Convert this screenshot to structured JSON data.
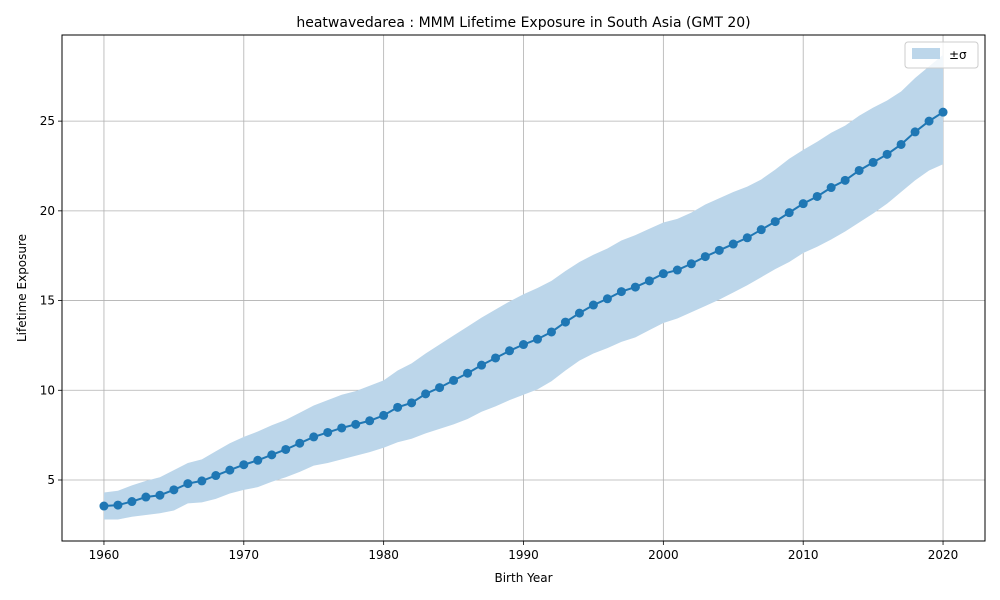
{
  "chart_data": {
    "type": "line",
    "title": "heatwavedarea : MMM Lifetime Exposure in South Asia (GMT 20)",
    "xlabel": "Birth Year",
    "ylabel": "Lifetime Exposure",
    "xlim": [
      1957,
      2023
    ],
    "ylim": [
      1.6,
      29.8
    ],
    "xticks": [
      1960,
      1970,
      1980,
      1990,
      2000,
      2010,
      2020
    ],
    "yticks": [
      5,
      10,
      15,
      20,
      25
    ],
    "grid": true,
    "legend_position": "top-right",
    "colors": {
      "line": "#1f77b4",
      "band": "#bcd6ea",
      "grid": "#b0b0b0"
    },
    "x": [
      1960,
      1961,
      1962,
      1963,
      1964,
      1965,
      1966,
      1967,
      1968,
      1969,
      1970,
      1971,
      1972,
      1973,
      1974,
      1975,
      1976,
      1977,
      1978,
      1979,
      1980,
      1981,
      1982,
      1983,
      1984,
      1985,
      1986,
      1987,
      1988,
      1989,
      1990,
      1991,
      1992,
      1993,
      1994,
      1995,
      1996,
      1997,
      1998,
      1999,
      2000,
      2001,
      2002,
      2003,
      2004,
      2005,
      2006,
      2007,
      2008,
      2009,
      2010,
      2011,
      2012,
      2013,
      2014,
      2015,
      2016,
      2017,
      2018,
      2019,
      2020
    ],
    "series": [
      {
        "values": [
          3.55,
          3.6,
          3.8,
          4.05,
          4.15,
          4.45,
          4.8,
          4.95,
          5.25,
          5.55,
          5.85,
          6.1,
          6.4,
          6.7,
          7.05,
          7.4,
          7.65,
          7.9,
          8.1,
          8.3,
          8.6,
          9.05,
          9.3,
          9.8,
          10.15,
          10.55,
          10.95,
          11.4,
          11.8,
          12.2,
          12.55,
          12.85,
          13.25,
          13.8,
          14.3,
          14.75,
          15.1,
          15.5,
          15.75,
          16.1,
          16.5,
          16.7,
          17.05,
          17.45,
          17.8,
          18.15,
          18.5,
          18.95,
          19.4,
          19.9,
          20.4,
          20.8,
          21.3,
          21.7,
          22.25,
          22.7,
          23.15,
          23.7,
          24.4,
          25.0,
          25.5
        ]
      }
    ],
    "band": {
      "name": "±σ",
      "lower": [
        2.8,
        2.8,
        2.95,
        3.05,
        3.15,
        3.3,
        3.7,
        3.75,
        3.95,
        4.25,
        4.45,
        4.6,
        4.9,
        5.15,
        5.45,
        5.8,
        5.95,
        6.15,
        6.35,
        6.55,
        6.8,
        7.1,
        7.3,
        7.6,
        7.85,
        8.1,
        8.4,
        8.8,
        9.1,
        9.45,
        9.75,
        10.05,
        10.5,
        11.1,
        11.65,
        12.05,
        12.35,
        12.7,
        12.95,
        13.35,
        13.75,
        14.0,
        14.35,
        14.7,
        15.05,
        15.45,
        15.85,
        16.3,
        16.75,
        17.15,
        17.65,
        18.0,
        18.4,
        18.85,
        19.35,
        19.85,
        20.4,
        21.05,
        21.7,
        22.25,
        22.6
      ],
      "upper": [
        4.3,
        4.4,
        4.7,
        4.95,
        5.15,
        5.55,
        5.95,
        6.15,
        6.6,
        7.05,
        7.4,
        7.7,
        8.05,
        8.35,
        8.75,
        9.15,
        9.45,
        9.75,
        9.95,
        10.25,
        10.55,
        11.1,
        11.5,
        12.05,
        12.55,
        13.05,
        13.55,
        14.05,
        14.5,
        14.95,
        15.35,
        15.7,
        16.1,
        16.65,
        17.15,
        17.55,
        17.9,
        18.35,
        18.65,
        19.0,
        19.35,
        19.55,
        19.9,
        20.35,
        20.7,
        21.05,
        21.35,
        21.75,
        22.3,
        22.9,
        23.4,
        23.85,
        24.35,
        24.75,
        25.3,
        25.75,
        26.15,
        26.65,
        27.4,
        28.05,
        28.7
      ]
    }
  }
}
